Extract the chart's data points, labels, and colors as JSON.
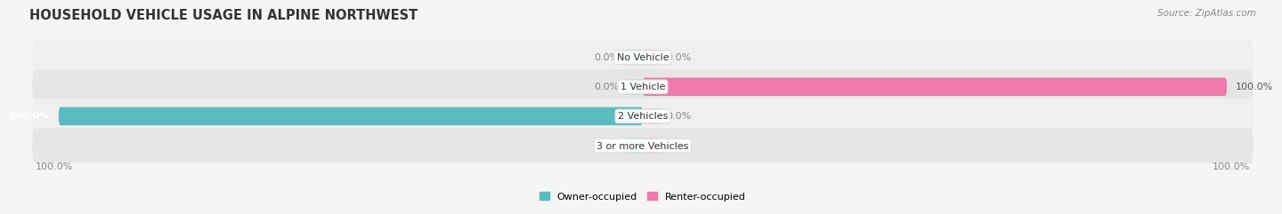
{
  "title": "HOUSEHOLD VEHICLE USAGE IN ALPINE NORTHWEST",
  "source": "Source: ZipAtlas.com",
  "categories": [
    "No Vehicle",
    "1 Vehicle",
    "2 Vehicles",
    "3 or more Vehicles"
  ],
  "owner_values": [
    0.0,
    0.0,
    100.0,
    0.0
  ],
  "renter_values": [
    0.0,
    100.0,
    0.0,
    0.0
  ],
  "owner_color": "#5bbcbf",
  "renter_color": "#f07aaa",
  "owner_color_light": "#a8d8da",
  "renter_color_light": "#f5b8d0",
  "owner_label": "Owner-occupied",
  "renter_label": "Renter-occupied",
  "bar_height": 0.62,
  "row_colors": [
    "#efefef",
    "#e6e6e6",
    "#efefef",
    "#e6e6e6"
  ],
  "title_fontsize": 10.5,
  "label_fontsize": 8,
  "cat_fontsize": 8,
  "source_fontsize": 7.5
}
